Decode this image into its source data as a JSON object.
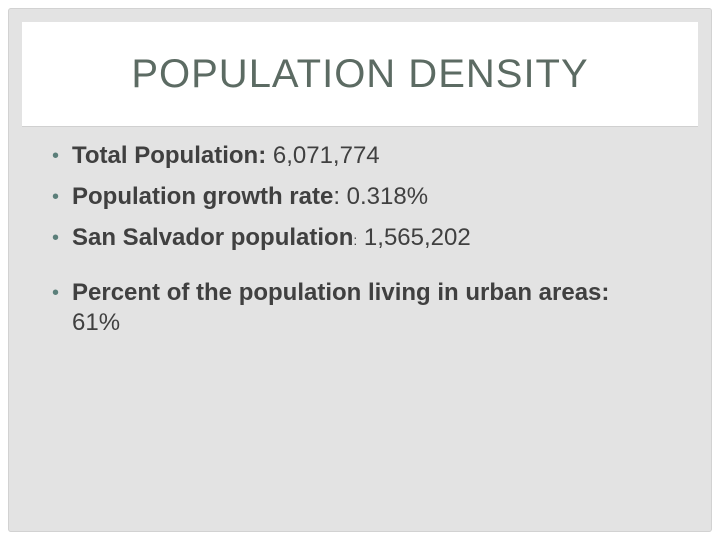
{
  "slide": {
    "title": "POPULATION DENSITY",
    "bullets": [
      {
        "label": "Total Population:",
        "separator": "",
        "value": " 6,071,774"
      },
      {
        "label": "Population growth rate",
        "separator": ":",
        "value": " 0.318%"
      },
      {
        "label": "San Salvador population",
        "separator": ":",
        "value": " 1,565,202"
      },
      {
        "label": "Percent of the population living in urban areas:",
        "separator": "",
        "value": " 61%"
      }
    ],
    "bullet_glyph": "•"
  }
}
